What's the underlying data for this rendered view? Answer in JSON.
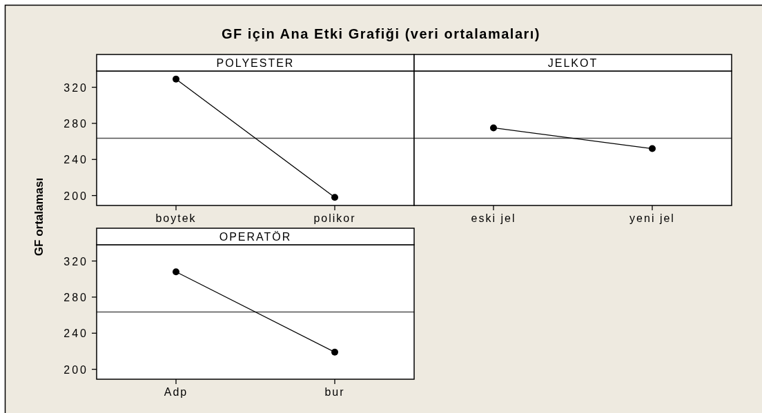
{
  "chart_data": [
    {
      "type": "line",
      "title": "GF için Ana Etki Grafiği (veri ortalamaları)",
      "xlabel": "POLYESTER",
      "ylabel": "GF ortalaması",
      "categories": [
        "boytek",
        "polikor"
      ],
      "series": [
        {
          "color": "#000000",
          "values": [
            329,
            198
          ]
        }
      ],
      "ylim": [
        189,
        338
      ],
      "yticks": [
        200,
        240,
        280,
        320
      ],
      "ref_lines": [
        {
          "axis": "y",
          "value": 263.5,
          "color": "#505050"
        }
      ],
      "marker": "circle",
      "line_style": "solid"
    },
    {
      "type": "line",
      "xlabel": "JELKOT",
      "categories": [
        "eski jel",
        "yeni jel"
      ],
      "series": [
        {
          "color": "#000000",
          "values": [
            275,
            252
          ]
        }
      ],
      "ylim": [
        189,
        338
      ],
      "yticks": [
        200,
        240,
        280,
        320
      ],
      "tick_labels": "x",
      "ref_lines": [
        {
          "axis": "y",
          "value": 263.5,
          "color": "#505050"
        }
      ],
      "marker": "circle",
      "line_style": "solid"
    },
    {
      "type": "line",
      "xlabel": "OPERATÖR",
      "categories": [
        "Adp",
        "bur"
      ],
      "series": [
        {
          "color": "#000000",
          "values": [
            308,
            219
          ]
        }
      ],
      "ylim": [
        189,
        338
      ],
      "yticks": [
        200,
        240,
        280,
        320
      ],
      "ref_lines": [
        {
          "axis": "y",
          "value": 263.5,
          "color": "#505050"
        }
      ],
      "marker": "circle",
      "line_style": "solid"
    }
  ]
}
